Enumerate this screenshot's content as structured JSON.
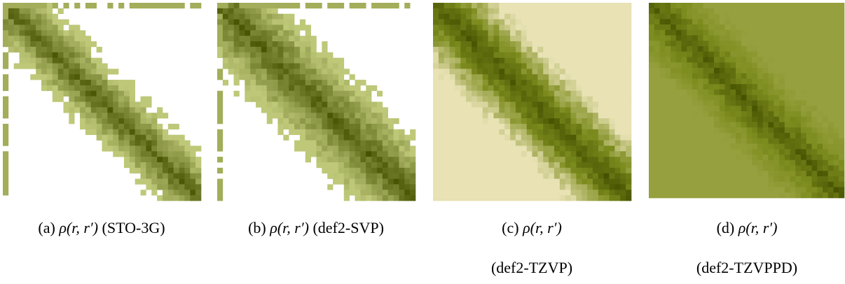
{
  "panels": [
    {
      "label": "(a)",
      "expression": "ρ(r, r′)",
      "basis": "(STO-3G)"
    },
    {
      "label": "(b)",
      "expression": "ρ(r, r′)",
      "basis": "(def2-SVP)"
    },
    {
      "label": "(c)",
      "expression": "ρ(r, r′)",
      "basis": "(def2-TZVP)"
    },
    {
      "label": "(d)",
      "expression": "ρ(r, r′)",
      "basis": "(def2-TZVPPD)"
    }
  ]
}
